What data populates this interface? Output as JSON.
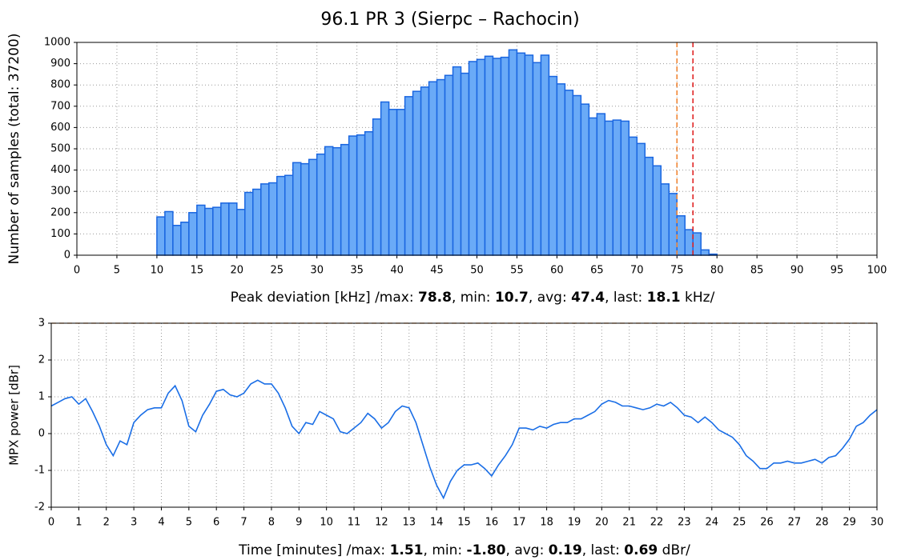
{
  "chart_data": [
    {
      "type": "histogram",
      "title": "96.1 PR 3 (Sierpc – Rachocin)",
      "ylabel": "Number of samples (total: 37200)",
      "xlabel": [
        {
          "text": "Peak deviation [kHz] /max: "
        },
        {
          "text": "78.8",
          "bold": true
        },
        {
          "text": ", min: "
        },
        {
          "text": "10.7",
          "bold": true
        },
        {
          "text": ", avg: "
        },
        {
          "text": "47.4",
          "bold": true
        },
        {
          "text": ", last: "
        },
        {
          "text": "18.1",
          "bold": true
        },
        {
          "text": " kHz/"
        }
      ],
      "bins": [
        10,
        11,
        12,
        13,
        14,
        15,
        16,
        17,
        18,
        19,
        20,
        21,
        22,
        23,
        24,
        25,
        26,
        27,
        28,
        29,
        30,
        31,
        32,
        33,
        34,
        35,
        36,
        37,
        38,
        39,
        40,
        41,
        42,
        43,
        44,
        45,
        46,
        47,
        48,
        49,
        50,
        51,
        52,
        53,
        54,
        55,
        56,
        57,
        58,
        59,
        60,
        61,
        62,
        63,
        64,
        65,
        66,
        67,
        68,
        69,
        70,
        71,
        72,
        73,
        74,
        75,
        76,
        77,
        78,
        79,
        80
      ],
      "values": [
        180,
        205,
        140,
        155,
        200,
        235,
        220,
        225,
        245,
        245,
        215,
        295,
        310,
        335,
        340,
        370,
        375,
        435,
        430,
        450,
        475,
        510,
        505,
        520,
        560,
        565,
        580,
        640,
        720,
        685,
        685,
        745,
        770,
        790,
        815,
        825,
        845,
        885,
        855,
        910,
        920,
        935,
        925,
        930,
        965,
        950,
        940,
        905,
        940,
        840,
        805,
        775,
        750,
        710,
        645,
        665,
        630,
        635,
        630,
        555,
        525,
        460,
        420,
        335,
        290,
        185,
        120,
        105,
        25,
        5
      ],
      "color": "#6aaaf7",
      "edgecolor": "#1a66e0",
      "vlines": [
        {
          "value": 75,
          "color": "#f07f2a"
        },
        {
          "value": 77,
          "color": "#e01818"
        }
      ],
      "xlim": [
        0,
        100
      ],
      "xticks": [
        0,
        5,
        10,
        15,
        20,
        25,
        30,
        35,
        40,
        45,
        50,
        55,
        60,
        65,
        70,
        75,
        80,
        85,
        90,
        95,
        100
      ],
      "ylim": [
        0,
        1000
      ],
      "yticks": [
        0,
        100,
        200,
        300,
        400,
        500,
        600,
        700,
        800,
        900,
        1000
      ],
      "grid": true
    },
    {
      "type": "line",
      "ylabel": "MPX power [dBr]",
      "xlabel": [
        {
          "text": "Time [minutes] /max: "
        },
        {
          "text": "1.51",
          "bold": true
        },
        {
          "text": ", min: "
        },
        {
          "text": "-1.80",
          "bold": true
        },
        {
          "text": ", avg: "
        },
        {
          "text": "0.19",
          "bold": true
        },
        {
          "text": ", last: "
        },
        {
          "text": "0.69",
          "bold": true
        },
        {
          "text": " dBr/"
        }
      ],
      "x": [
        0,
        0.25,
        0.5,
        0.75,
        1,
        1.25,
        1.5,
        1.75,
        2,
        2.25,
        2.5,
        2.75,
        3,
        3.25,
        3.5,
        3.75,
        4,
        4.25,
        4.5,
        4.75,
        5,
        5.25,
        5.5,
        5.75,
        6,
        6.25,
        6.5,
        6.75,
        7,
        7.25,
        7.5,
        7.75,
        8,
        8.25,
        8.5,
        8.75,
        9,
        9.25,
        9.5,
        9.75,
        10,
        10.25,
        10.5,
        10.75,
        11,
        11.25,
        11.5,
        11.75,
        12,
        12.25,
        12.5,
        12.75,
        13,
        13.25,
        13.5,
        13.75,
        14,
        14.25,
        14.5,
        14.75,
        15,
        15.25,
        15.5,
        15.75,
        16,
        16.25,
        16.5,
        16.75,
        17,
        17.25,
        17.5,
        17.75,
        18,
        18.25,
        18.5,
        18.75,
        19,
        19.25,
        19.5,
        19.75,
        20,
        20.25,
        20.5,
        20.75,
        21,
        21.25,
        21.5,
        21.75,
        22,
        22.25,
        22.5,
        22.75,
        23,
        23.25,
        23.5,
        23.75,
        24,
        24.25,
        24.5,
        24.75,
        25,
        25.25,
        25.5,
        25.75,
        26,
        26.25,
        26.5,
        26.75,
        27,
        27.25,
        27.5,
        27.75,
        28,
        28.25,
        28.5,
        28.75,
        29,
        29.25,
        29.5,
        29.75,
        30
      ],
      "values": [
        0.75,
        0.85,
        0.95,
        1.0,
        0.8,
        0.95,
        0.6,
        0.2,
        -0.3,
        -0.6,
        -0.2,
        -0.3,
        0.3,
        0.5,
        0.65,
        0.7,
        0.7,
        1.1,
        1.3,
        0.9,
        0.2,
        0.05,
        0.5,
        0.8,
        1.15,
        1.2,
        1.05,
        1.0,
        1.1,
        1.35,
        1.45,
        1.35,
        1.35,
        1.1,
        0.7,
        0.2,
        0.0,
        0.3,
        0.25,
        0.6,
        0.5,
        0.4,
        0.05,
        0.0,
        0.15,
        0.3,
        0.55,
        0.4,
        0.15,
        0.3,
        0.6,
        0.75,
        0.7,
        0.3,
        -0.3,
        -0.9,
        -1.4,
        -1.75,
        -1.3,
        -1.0,
        -0.85,
        -0.85,
        -0.8,
        -0.95,
        -1.15,
        -0.85,
        -0.6,
        -0.3,
        0.15,
        0.15,
        0.1,
        0.2,
        0.15,
        0.25,
        0.3,
        0.3,
        0.4,
        0.4,
        0.5,
        0.6,
        0.8,
        0.9,
        0.85,
        0.75,
        0.75,
        0.7,
        0.65,
        0.7,
        0.8,
        0.75,
        0.85,
        0.7,
        0.5,
        0.45,
        0.3,
        0.45,
        0.3,
        0.1,
        0.0,
        -0.1,
        -0.3,
        -0.6,
        -0.75,
        -0.95,
        -0.95,
        -0.8,
        -0.8,
        -0.75,
        -0.8,
        -0.8,
        -0.75,
        -0.7,
        -0.8,
        -0.65,
        -0.6,
        -0.4,
        -0.15,
        0.2,
        0.3,
        0.5,
        0.65
      ],
      "color": "#1a6ee6",
      "hlines": [
        {
          "value": 3,
          "color": "#f07f2a"
        }
      ],
      "xlim": [
        0,
        30
      ],
      "xticks": [
        0,
        1,
        2,
        3,
        4,
        5,
        6,
        7,
        8,
        9,
        10,
        11,
        12,
        13,
        14,
        15,
        16,
        17,
        18,
        19,
        20,
        21,
        22,
        23,
        24,
        25,
        26,
        27,
        28,
        29,
        30
      ],
      "ylim": [
        -2,
        3
      ],
      "yticks": [
        -2,
        -1,
        0,
        1,
        2,
        3
      ],
      "grid": true
    }
  ]
}
